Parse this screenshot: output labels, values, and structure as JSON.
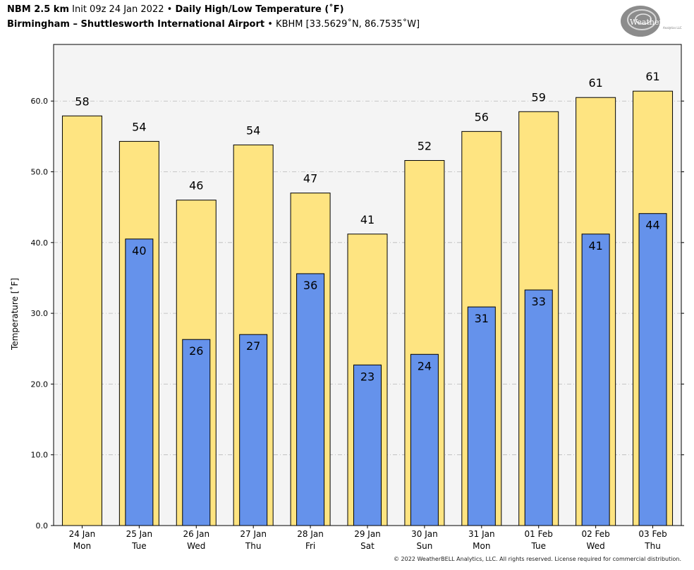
{
  "header": {
    "line1": {
      "model": "NBM 2.5 km",
      "init": "Init 09z 24 Jan 2022",
      "sep": "•",
      "product": "Daily High/Low Temperature (˚F)"
    },
    "line2": {
      "station": "Birmingham – Shuttlesworth International Airport",
      "sep": "•",
      "location": "KBHM [33.5629˚N, 86.7535˚W]"
    }
  },
  "logo": {
    "text": "WeatherBELL",
    "sub": "Analytics LLC"
  },
  "footer": "© 2022 WeatherBELL Analytics, LLC. All rights reserved. License required for commercial distribution.",
  "colors": {
    "high": "#fee481",
    "low": "#6592eb",
    "plot_bg": "#f4f4f4",
    "grid": "#b8b8b8"
  },
  "chart_data": {
    "type": "bar",
    "title": "Daily High/Low Temperature (˚F)",
    "ylabel": "Temperature [˚F]",
    "xlabel": "",
    "ylim": [
      0,
      68
    ],
    "yticks": [
      "0.0",
      "10.0",
      "20.0",
      "30.0",
      "40.0",
      "50.0",
      "60.0"
    ],
    "grid": true,
    "categories": [
      [
        "24 Jan",
        "Mon"
      ],
      [
        "25 Jan",
        "Tue"
      ],
      [
        "26 Jan",
        "Wed"
      ],
      [
        "27 Jan",
        "Thu"
      ],
      [
        "28 Jan",
        "Fri"
      ],
      [
        "29 Jan",
        "Sat"
      ],
      [
        "30 Jan",
        "Sun"
      ],
      [
        "31 Jan",
        "Mon"
      ],
      [
        "01 Feb",
        "Tue"
      ],
      [
        "02 Feb",
        "Wed"
      ],
      [
        "03 Feb",
        "Thu"
      ]
    ],
    "series": [
      {
        "key": "high",
        "values": [
          57.9,
          54.3,
          46.0,
          53.8,
          47.0,
          41.2,
          51.6,
          55.7,
          58.5,
          60.5,
          61.4
        ],
        "labels": [
          "58",
          "54",
          "46",
          "54",
          "47",
          "41",
          "52",
          "56",
          "59",
          "61",
          "61"
        ]
      },
      {
        "key": "low",
        "values": [
          null,
          40.5,
          26.3,
          27.0,
          35.6,
          22.7,
          24.2,
          30.9,
          33.3,
          41.2,
          44.1
        ],
        "labels": [
          "",
          "40",
          "26",
          "27",
          "36",
          "23",
          "24",
          "31",
          "33",
          "41",
          "44"
        ]
      }
    ]
  }
}
